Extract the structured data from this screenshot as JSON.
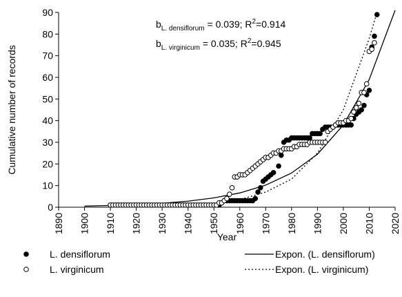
{
  "chart_data": {
    "type": "scatter",
    "y_label": "Cumulative number of records",
    "x_label": "Year",
    "xlim": [
      1890,
      2020
    ],
    "xticks": [
      1890,
      1900,
      1910,
      1920,
      1930,
      1940,
      1950,
      1960,
      1970,
      1980,
      1990,
      2000,
      2010,
      2020
    ],
    "ylim": [
      0,
      90
    ],
    "yticks": [
      0,
      10,
      20,
      30,
      40,
      50,
      60,
      70,
      80,
      90
    ],
    "annotations": [
      {
        "parts": [
          "b",
          "L. densiflorum",
          " = 0.039; R",
          "2",
          "=0.914"
        ]
      },
      {
        "parts": [
          "b",
          "L. virginicum",
          " = 0.035; R",
          "2",
          "=0.945"
        ]
      }
    ],
    "series": [
      {
        "name": "L. densiflorum",
        "kind": "points",
        "marker": "filled",
        "color": "#000000",
        "x": [
          1952,
          1953,
          1954,
          1955,
          1956,
          1957,
          1958,
          1959,
          1960,
          1961,
          1962,
          1963,
          1964,
          1965,
          1966,
          1967,
          1968,
          1969,
          1970,
          1971,
          1972,
          1973,
          1975,
          1976,
          1977,
          1978,
          1979,
          1980,
          1981,
          1982,
          1983,
          1984,
          1985,
          1986,
          1987,
          1988,
          1989,
          1990,
          1991,
          1992,
          1993,
          1994,
          1995,
          1996,
          1997,
          1998,
          1999,
          2000,
          2001,
          2002,
          2003,
          2004,
          2005,
          2006,
          2007,
          2008,
          2009,
          2010,
          2011,
          2012,
          2013
        ],
        "values": [
          1,
          2,
          3,
          3,
          3,
          3,
          3,
          3,
          3,
          3,
          3,
          3,
          3,
          3,
          4,
          7,
          9,
          12,
          13,
          14,
          15,
          16,
          19,
          24,
          30,
          31,
          31,
          32,
          32,
          32,
          32,
          32,
          32,
          32,
          32,
          34,
          34,
          34,
          34,
          36,
          37,
          37,
          37,
          37,
          38,
          38,
          38,
          38,
          38,
          38,
          38,
          41,
          43,
          44,
          45,
          47,
          52,
          54,
          74,
          79,
          89
        ]
      },
      {
        "name": "L. virginicum",
        "kind": "points",
        "marker": "open",
        "color": "#000000",
        "x": [
          1910,
          1911,
          1912,
          1913,
          1914,
          1915,
          1916,
          1917,
          1918,
          1919,
          1920,
          1921,
          1922,
          1923,
          1924,
          1925,
          1926,
          1927,
          1928,
          1929,
          1930,
          1931,
          1932,
          1933,
          1934,
          1935,
          1936,
          1937,
          1938,
          1939,
          1940,
          1941,
          1942,
          1943,
          1944,
          1945,
          1946,
          1947,
          1948,
          1949,
          1950,
          1951,
          1952,
          1953,
          1954,
          1955,
          1956,
          1957,
          1958,
          1959,
          1960,
          1961,
          1962,
          1963,
          1964,
          1965,
          1966,
          1967,
          1968,
          1969,
          1970,
          1971,
          1972,
          1973,
          1974,
          1975,
          1976,
          1977,
          1978,
          1979,
          1980,
          1981,
          1982,
          1983,
          1984,
          1985,
          1986,
          1987,
          1988,
          1989,
          1990,
          1991,
          1992,
          1993,
          1994,
          1995,
          1996,
          1997,
          1998,
          1999,
          2000,
          2001,
          2002,
          2003,
          2004,
          2005,
          2006,
          2007,
          2008,
          2009,
          2010,
          2011,
          2012
        ],
        "values": [
          1,
          1,
          1,
          1,
          1,
          1,
          1,
          1,
          1,
          1,
          1,
          1,
          1,
          1,
          1,
          1,
          1,
          1,
          1,
          1,
          1,
          1,
          1,
          1,
          1,
          1,
          1,
          1,
          1,
          1,
          1,
          1,
          1,
          1,
          1,
          1,
          1,
          1,
          1,
          1,
          1,
          1,
          2,
          2,
          3,
          4,
          6,
          9,
          14,
          14,
          15,
          15,
          15,
          16,
          17,
          18,
          19,
          20,
          21,
          22,
          23,
          23,
          24,
          25,
          25,
          26,
          26,
          27,
          27,
          27,
          27,
          28,
          28,
          29,
          29,
          29,
          29,
          30,
          30,
          30,
          30,
          30,
          30,
          30,
          35,
          36,
          37,
          38,
          39,
          39,
          39,
          40,
          40,
          41,
          44,
          46,
          48,
          53,
          53,
          57,
          72,
          73,
          76
        ]
      },
      {
        "name": "Expon. (L. densiflorum)",
        "kind": "line",
        "dash": "none",
        "color": "#000000",
        "x": [
          1900,
          1910,
          1920,
          1930,
          1940,
          1950,
          1960,
          1970,
          1980,
          1990,
          2000,
          2010,
          2020
        ],
        "values": [
          0.5,
          0.8,
          1.2,
          1.8,
          2.8,
          4.3,
          6.6,
          10.2,
          15.8,
          24.5,
          38,
          59,
          91
        ]
      },
      {
        "name": "Expon. (L. virginicum)",
        "kind": "line",
        "dash": "2 3",
        "color": "#000000",
        "x": [
          1910,
          1920,
          1930,
          1940,
          1950,
          1960,
          1970,
          1980,
          1990,
          2000,
          2010,
          2013
        ],
        "values": [
          0.1,
          0.2,
          0.4,
          0.8,
          1.7,
          3.5,
          7,
          13,
          25,
          45,
          78,
          90
        ]
      }
    ]
  }
}
